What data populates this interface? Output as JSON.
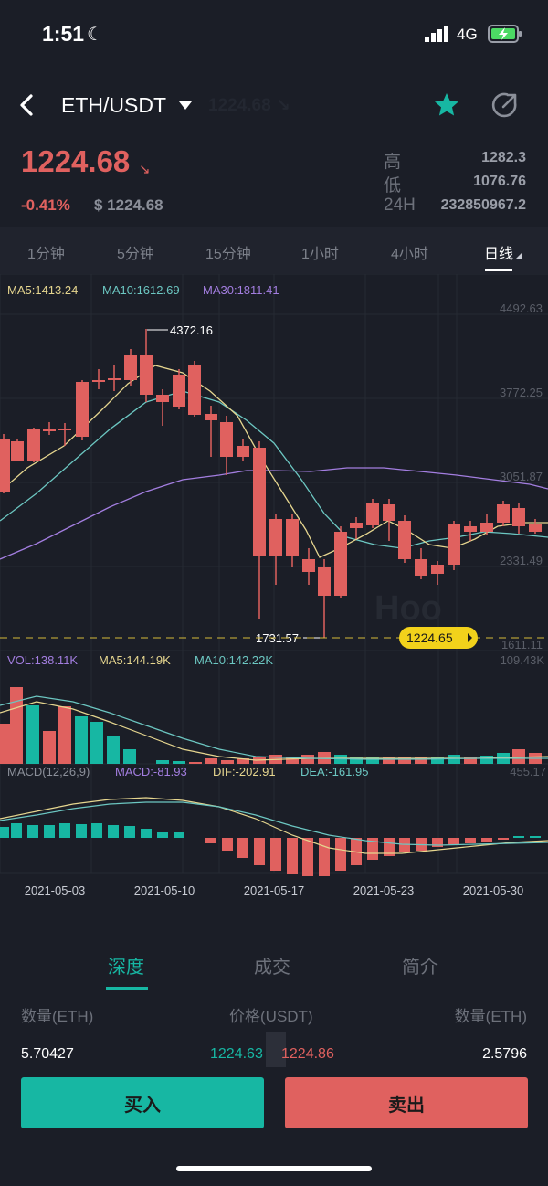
{
  "status": {
    "time": "1:51",
    "network": "4G"
  },
  "header": {
    "pair": "ETH/USDT",
    "ghost_price": "1224.68 ↘"
  },
  "ticker": {
    "price": "1224.68",
    "change_pct": "-0.41%",
    "usd_price": "$ 1224.68",
    "stats": [
      {
        "label": "高",
        "value": "1282.3"
      },
      {
        "label": "低",
        "value": "1076.76"
      },
      {
        "label": "24H",
        "value": "232850967.2"
      }
    ]
  },
  "timeframes": [
    "1分钟",
    "5分钟",
    "15分钟",
    "1小时",
    "4小时",
    "日线"
  ],
  "chart_data": {
    "type": "candlestick",
    "ma_labels": [
      "MA5:1413.24",
      "MA10:1612.69",
      "MA30:1811.41"
    ],
    "price_axis": [
      "4492.63",
      "3772.25",
      "3051.87",
      "2331.49",
      "1611.11"
    ],
    "high_mark": "4372.16",
    "low_mark": "1731.57",
    "current_price_tag": "1224.65",
    "vol_labels": [
      "VOL:138.11K",
      "MA5:144.19K",
      "MA10:142.22K"
    ],
    "vol_axis": "109.43K",
    "macd_labels": [
      "MACD(12,26,9)",
      "MACD:-81.93",
      "DIF:-202.91",
      "DEA:-161.95"
    ],
    "macd_axis": "455.17",
    "dates": [
      "2021-05-03",
      "2021-05-10",
      "2021-05-17",
      "2021-05-23",
      "2021-05-30"
    ],
    "watermark": "Hoo",
    "colors": {
      "up": "#17b7a3",
      "down": "#e0615f",
      "ma5": "#e6d68f",
      "ma10": "#6cc7c2",
      "ma30": "#a37ee0"
    }
  },
  "bottom_tabs": [
    "深度",
    "成交",
    "简介"
  ],
  "orderbook": {
    "headers": [
      "数量(ETH)",
      "价格(USDT)",
      "数量(ETH)"
    ],
    "bid_qty": "5.70427",
    "bid_price": "1224.63",
    "ask_price": "1224.86",
    "ask_qty": "2.5796"
  },
  "actions": {
    "buy": "买入",
    "sell": "卖出"
  }
}
